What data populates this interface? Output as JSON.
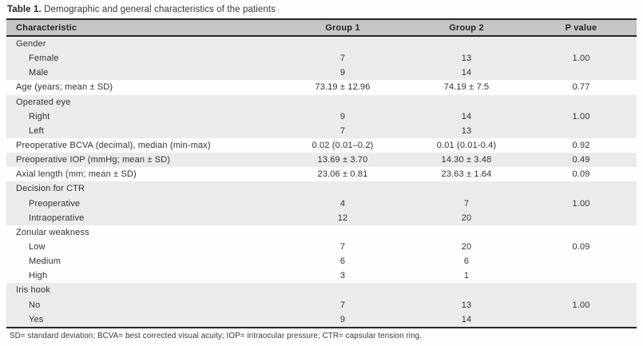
{
  "title": {
    "label": "Table 1.",
    "text": " Demographic and general characteristics of the patients"
  },
  "table": {
    "columns": [
      "Characteristic",
      "Group 1",
      "Group 2",
      "P value"
    ],
    "rows": [
      {
        "label": "Gender",
        "indent": false,
        "g1": "",
        "g2": "",
        "p": "",
        "shaded": true
      },
      {
        "label": "Female",
        "indent": true,
        "g1": "7",
        "g2": "13",
        "p": "1.00",
        "shaded": true
      },
      {
        "label": "Male",
        "indent": true,
        "g1": "9",
        "g2": "14",
        "p": "",
        "shaded": true
      },
      {
        "label": "Age (years; mean ± SD)",
        "indent": false,
        "g1": "73.19 ± 12.96",
        "g2": "74.19 ± 7.5",
        "p": "0.77",
        "shaded": false
      },
      {
        "label": "Operated eye",
        "indent": false,
        "g1": "",
        "g2": "",
        "p": "",
        "shaded": true
      },
      {
        "label": "Right",
        "indent": true,
        "g1": "9",
        "g2": "14",
        "p": "1.00",
        "shaded": true
      },
      {
        "label": "Left",
        "indent": true,
        "g1": "7",
        "g2": "13",
        "p": "",
        "shaded": true
      },
      {
        "label": "Preoperative BCVA (decimal), median (min-max)",
        "indent": false,
        "g1": "0.02 (0.01–0.2)",
        "g2": "0.01 (0.01-0.4)",
        "p": "0.92",
        "shaded": false
      },
      {
        "label": "Preoperative IOP (mmHg; mean ± SD)",
        "indent": false,
        "g1": "13.69 ± 3.70",
        "g2": "14.30 ± 3.48",
        "p": "0.49",
        "shaded": true
      },
      {
        "label": "Axial length (mm; mean ± SD)",
        "indent": false,
        "g1": "23.06 ± 0.81",
        "g2": "23.63 ± 1.64",
        "p": "0.09",
        "shaded": false
      },
      {
        "label": "Decision for CTR",
        "indent": false,
        "g1": "",
        "g2": "",
        "p": "",
        "shaded": true
      },
      {
        "label": "Preoperative",
        "indent": true,
        "g1": "4",
        "g2": "7",
        "p": "1.00",
        "shaded": true
      },
      {
        "label": "Intraoperative",
        "indent": true,
        "g1": "12",
        "g2": "20",
        "p": "",
        "shaded": true
      },
      {
        "label": "Zonular weakness",
        "indent": false,
        "g1": "",
        "g2": "",
        "p": "",
        "shaded": false
      },
      {
        "label": "Low",
        "indent": true,
        "g1": "7",
        "g2": "20",
        "p": "0.09",
        "shaded": false
      },
      {
        "label": "Medium",
        "indent": true,
        "g1": "6",
        "g2": "6",
        "p": "",
        "shaded": false
      },
      {
        "label": "High",
        "indent": true,
        "g1": "3",
        "g2": "1",
        "p": "",
        "shaded": false
      },
      {
        "label": "Iris hook",
        "indent": false,
        "g1": "",
        "g2": "",
        "p": "",
        "shaded": true
      },
      {
        "label": "No",
        "indent": true,
        "g1": "7",
        "g2": "13",
        "p": "1.00",
        "shaded": true
      },
      {
        "label": "Yes",
        "indent": true,
        "g1": "9",
        "g2": "14",
        "p": "",
        "shaded": true
      }
    ],
    "footnote": "SD= standard deviation; BCVA= best corrected visual acuity; IOP= intraocular pressure; CTR= capsular tension ring."
  },
  "colors": {
    "header_bg": "#c6c6c6",
    "shaded_row_bg": "#ebebeb",
    "rule": "#262626",
    "page_bg": "#fefefe"
  }
}
